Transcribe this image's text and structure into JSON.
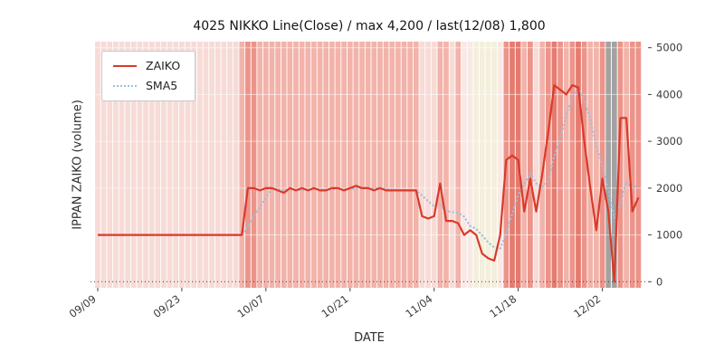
{
  "chart_data": {
    "type": "line",
    "title": "4025 NIKKO Line(Close) / max 4,200 / last(12/08) 1,800",
    "xlabel": "DATE",
    "ylabel": "IPPAN ZAIKO (volume)",
    "ylim": [
      0,
      5000
    ],
    "yticks": [
      0,
      1000,
      2000,
      3000,
      4000,
      5000
    ],
    "xticks": {
      "indices": [
        0,
        14,
        28,
        42,
        56,
        70,
        84
      ],
      "labels": [
        "09/09",
        "09/23",
        "10/07",
        "10/21",
        "11/04",
        "11/18",
        "12/02"
      ]
    },
    "n_points": 91,
    "legend_position": "upper left",
    "grid": "vertical day stripes + faint white horizontal lines, dotted zero line",
    "series": [
      {
        "name": "ZAIKO",
        "color": "#d93a2b",
        "style": "solid",
        "values": [
          1000,
          1000,
          1000,
          1000,
          1000,
          1000,
          1000,
          1000,
          1000,
          1000,
          1000,
          1000,
          1000,
          1000,
          1000,
          1000,
          1000,
          1000,
          1000,
          1000,
          1000,
          1000,
          1000,
          1000,
          1000,
          2000,
          2000,
          1950,
          2000,
          2000,
          1950,
          1900,
          2000,
          1950,
          2000,
          1950,
          2000,
          1950,
          1950,
          2000,
          2000,
          1950,
          2000,
          2050,
          2000,
          2000,
          1950,
          2000,
          1950,
          1950,
          1950,
          1950,
          1950,
          1950,
          1400,
          1350,
          1400,
          2100,
          1300,
          1300,
          1250,
          1000,
          1100,
          1000,
          600,
          500,
          450,
          1000,
          2600,
          2700,
          2600,
          1500,
          2200,
          1500,
          2300,
          3200,
          4200,
          4100,
          4000,
          4200,
          4150,
          3000,
          2000,
          1100,
          2200,
          1500,
          0,
          3500,
          3500,
          1500,
          1800
        ]
      },
      {
        "name": "SMA5",
        "color": "#9fbede",
        "style": "dotted",
        "window": 5,
        "derived": "5-point moving average of ZAIKO"
      }
    ],
    "background_bands": {
      "palette": {
        "1": "#f7dbd6",
        "2": "#f2b3aa",
        "3": "#ec948a",
        "4": "#e57b6f",
        "y": "#f4efdc",
        "w": "#f9e9e5",
        "g": "#a2a2a2"
      },
      "per_day": "1111111111111111111111112332222222222222222222222222221112212wwyyyyw34423123432343223gg3233"
    }
  }
}
